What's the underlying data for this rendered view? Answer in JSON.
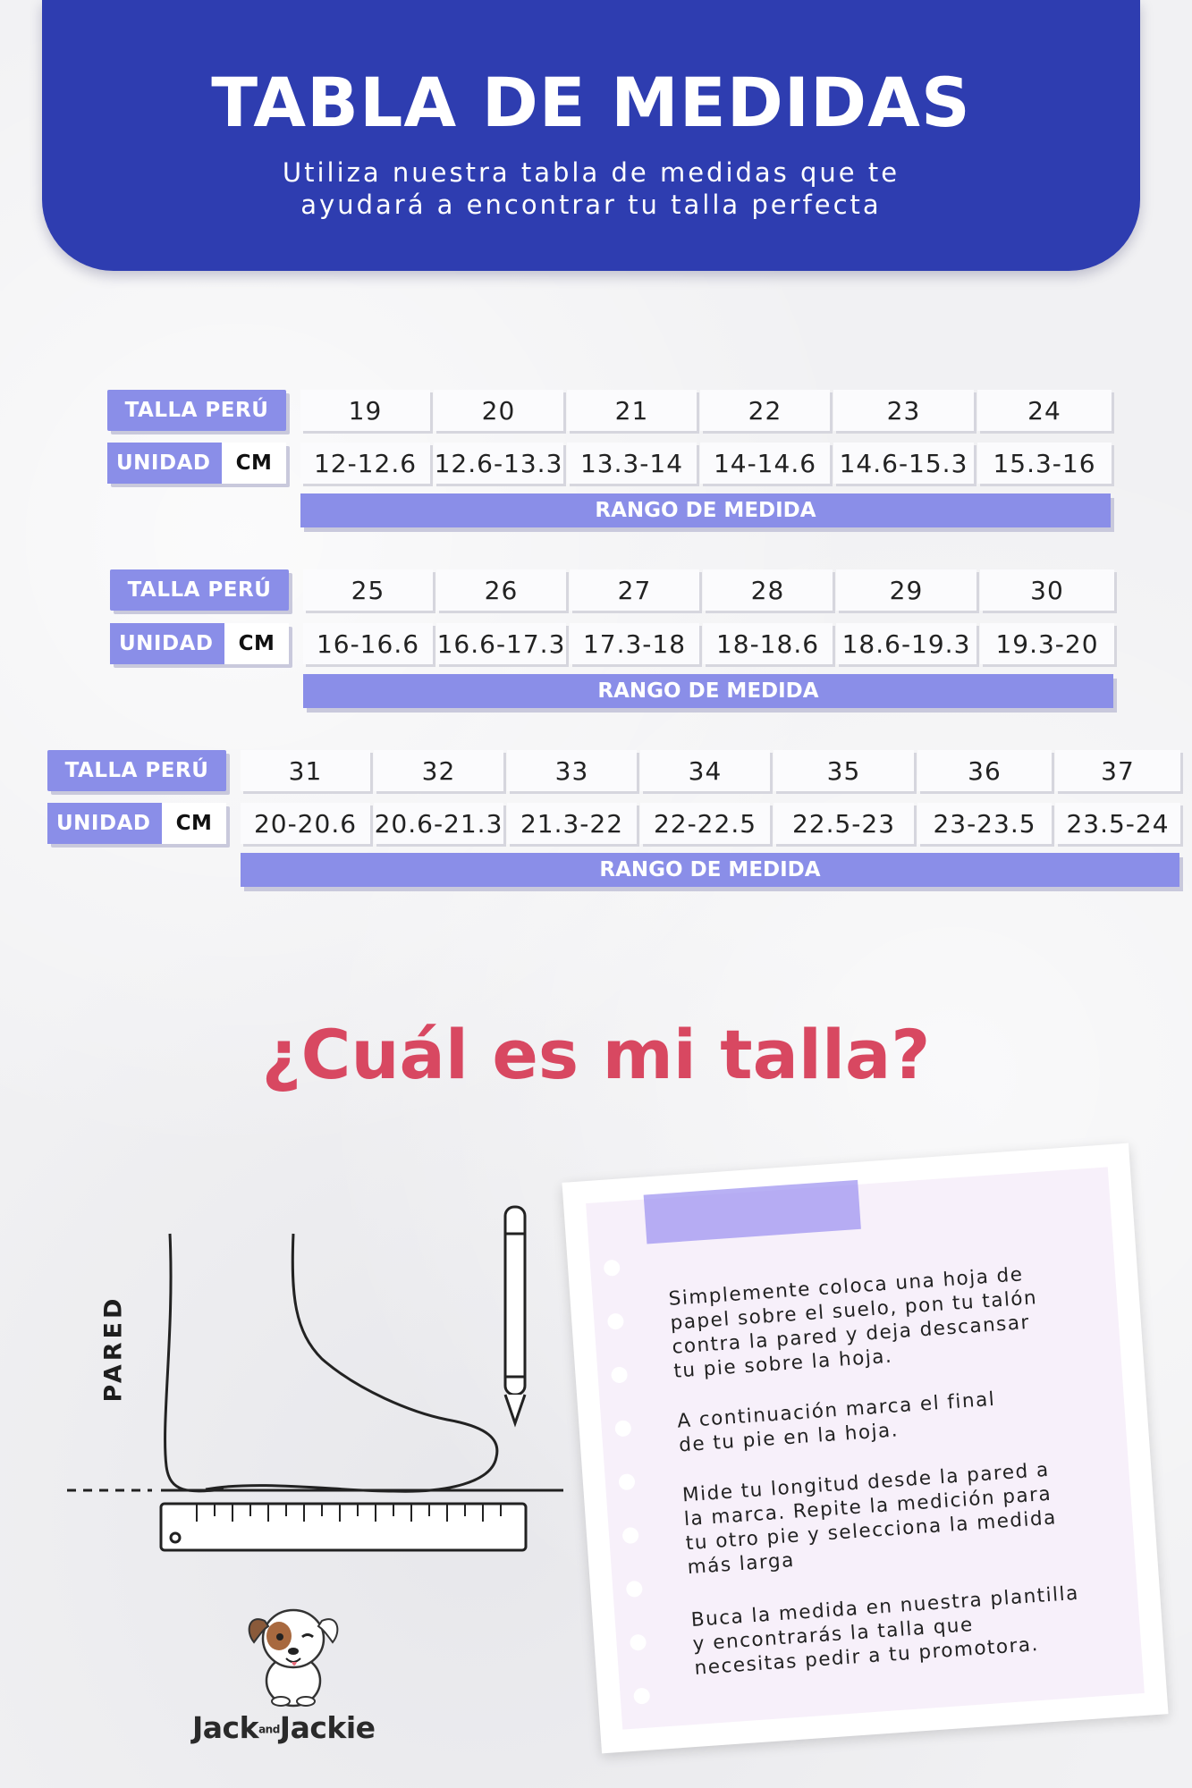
{
  "header": {
    "title": "TABLA DE MEDIDAS",
    "subtitle_line1": "Utiliza nuestra tabla de medidas que te",
    "subtitle_line2": "ayudará a encontrar tu talla perfecta"
  },
  "labels": {
    "size_label": "TALLA PERÚ",
    "unit_label": "UNIDAD",
    "unit_value": "CM",
    "range_label": "RANGO DE MEDIDA"
  },
  "tables": [
    {
      "sizes": [
        "19",
        "20",
        "21",
        "22",
        "23",
        "24"
      ],
      "ranges": [
        "12-12.6",
        "12.6-13.3",
        "13.3-14",
        "14-14.6",
        "14.6-15.3",
        "15.3-16"
      ]
    },
    {
      "sizes": [
        "25",
        "26",
        "27",
        "28",
        "29",
        "30"
      ],
      "ranges": [
        "16-16.6",
        "16.6-17.3",
        "17.3-18",
        "18-18.6",
        "18.6-19.3",
        "19.3-20"
      ]
    },
    {
      "sizes": [
        "31",
        "32",
        "33",
        "34",
        "35",
        "36",
        "37"
      ],
      "ranges": [
        "20-20.6",
        "20.6-21.3",
        "21.3-22",
        "22-22.5",
        "22.5-23",
        "23-23.5",
        "23.5-24"
      ]
    }
  ],
  "question": "¿Cuál es mi talla?",
  "illustration": {
    "wall_label": "PARED"
  },
  "note": {
    "step1": [
      "Simplemente coloca una hoja de",
      "papel sobre el suelo, pon tu talón",
      "contra la pared y deja descansar",
      "tu pie sobre la hoja."
    ],
    "step2": [
      "A continuación marca el final",
      "de tu pie en la hoja."
    ],
    "step3": [
      "Mide tu longitud desde la pared a",
      "la marca. Repite la medición para",
      "tu otro pie y selecciona la medida",
      "más larga"
    ],
    "step4": [
      "Buca la medida en nuestra plantilla",
      "y encontrarás la talla que",
      "necesitas pedir a tu promotora."
    ]
  },
  "brand": {
    "part1": "Jack",
    "and": "and",
    "part2": "Jackie"
  },
  "colors": {
    "header_blue": "#2e3db0",
    "label_lavender": "#8a8ee8",
    "question_pink": "#d84861",
    "note_bg": "#f7f0fa"
  }
}
